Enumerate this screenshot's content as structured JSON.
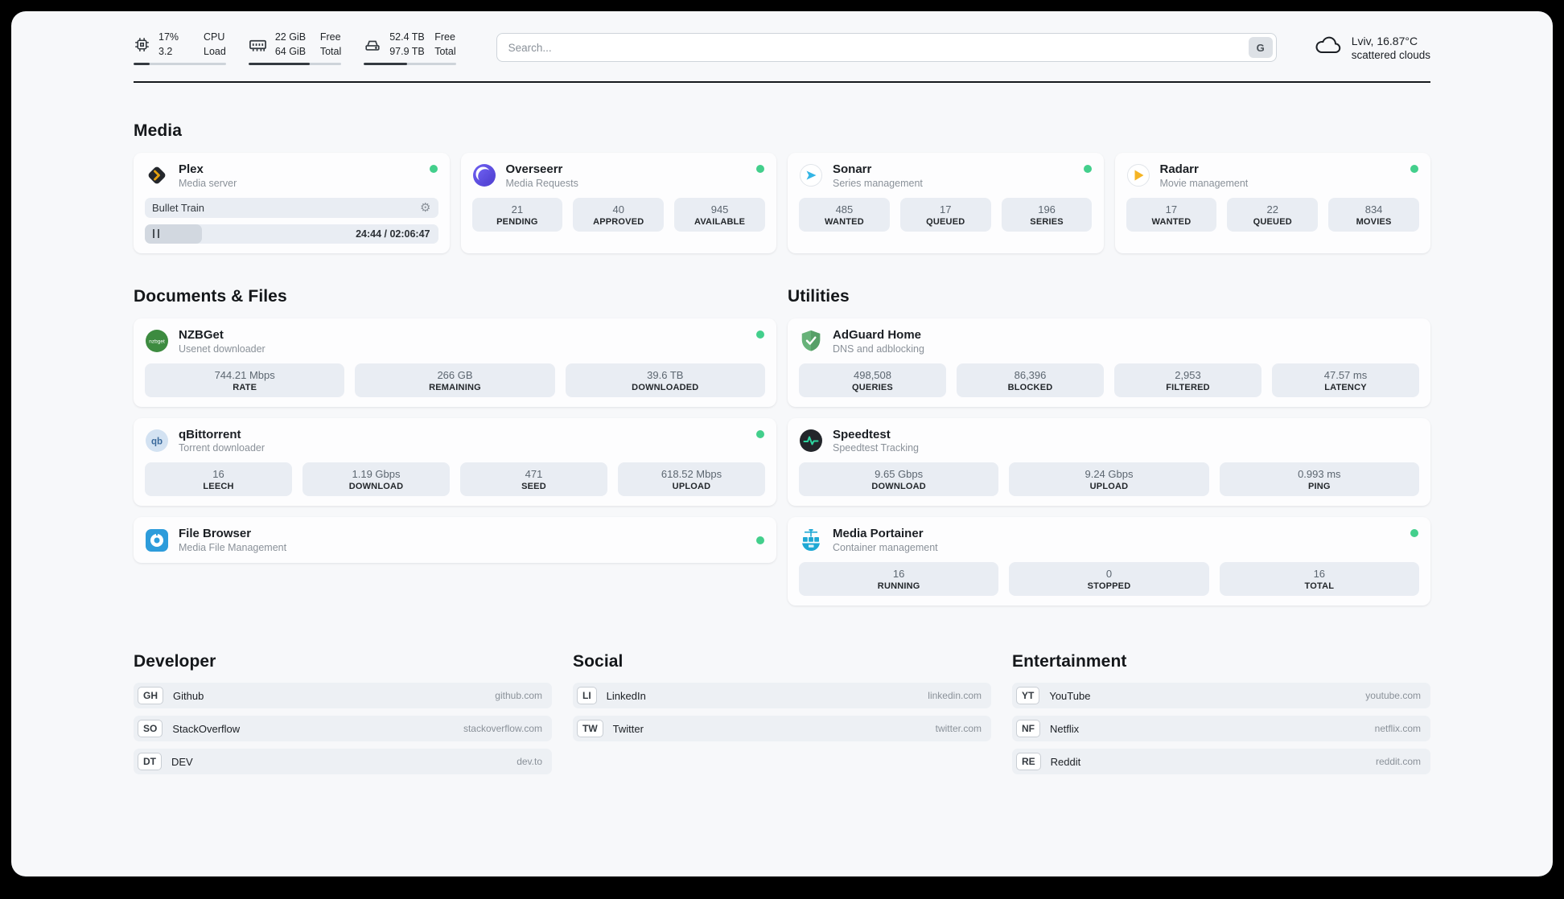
{
  "colors": {
    "status_online": "#43cf8c",
    "divider": "#16191d",
    "stat_box_bg": "#e9edf3",
    "plex_accent": "#e5a00d",
    "sonarr_accent": "#33b5e5",
    "radarr_accent": "#f5b423"
  },
  "header": {
    "cpu": {
      "value_top": "17%",
      "value_bottom": "3.2",
      "label_top": "CPU",
      "label_bottom": "Load",
      "bar_percent": 17
    },
    "ram": {
      "value_top": "22 GiB",
      "value_bottom": "64 GiB",
      "label_top": "Free",
      "label_bottom": "Total",
      "bar_percent": 66
    },
    "disk": {
      "value_top": "52.4 TB",
      "value_bottom": "97.9 TB",
      "label_top": "Free",
      "label_bottom": "Total",
      "bar_percent": 47
    },
    "search": {
      "placeholder": "Search...",
      "engine_label": "G"
    },
    "weather": {
      "location": "Lviv, 16.87°C",
      "condition": "scattered clouds"
    }
  },
  "sections": {
    "media": {
      "title": "Media"
    },
    "documents": {
      "title": "Documents & Files"
    },
    "utilities": {
      "title": "Utilities"
    },
    "developer": {
      "title": "Developer"
    },
    "social": {
      "title": "Social"
    },
    "entertainment": {
      "title": "Entertainment"
    }
  },
  "apps": {
    "plex": {
      "name": "Plex",
      "subtitle": "Media server",
      "now_playing": "Bullet Train",
      "time": "24:44 / 02:06:47",
      "progress_percent": 19.5
    },
    "overseerr": {
      "name": "Overseerr",
      "subtitle": "Media Requests",
      "stats": [
        {
          "value": "21",
          "label": "PENDING"
        },
        {
          "value": "40",
          "label": "APPROVED"
        },
        {
          "value": "945",
          "label": "AVAILABLE"
        }
      ]
    },
    "sonarr": {
      "name": "Sonarr",
      "subtitle": "Series management",
      "stats": [
        {
          "value": "485",
          "label": "WANTED"
        },
        {
          "value": "17",
          "label": "QUEUED"
        },
        {
          "value": "196",
          "label": "SERIES"
        }
      ]
    },
    "radarr": {
      "name": "Radarr",
      "subtitle": "Movie management",
      "stats": [
        {
          "value": "17",
          "label": "WANTED"
        },
        {
          "value": "22",
          "label": "QUEUED"
        },
        {
          "value": "834",
          "label": "MOVIES"
        }
      ]
    },
    "nzbget": {
      "name": "NZBGet",
      "subtitle": "Usenet downloader",
      "stats": [
        {
          "value": "744.21 Mbps",
          "label": "RATE"
        },
        {
          "value": "266 GB",
          "label": "REMAINING"
        },
        {
          "value": "39.6 TB",
          "label": "DOWNLOADED"
        }
      ]
    },
    "qbittorrent": {
      "name": "qBittorrent",
      "subtitle": "Torrent downloader",
      "stats": [
        {
          "value": "16",
          "label": "LEECH"
        },
        {
          "value": "1.19 Gbps",
          "label": "DOWNLOAD"
        },
        {
          "value": "471",
          "label": "SEED"
        },
        {
          "value": "618.52 Mbps",
          "label": "UPLOAD"
        }
      ]
    },
    "filebrowser": {
      "name": "File Browser",
      "subtitle": "Media File Management"
    },
    "adguard": {
      "name": "AdGuard Home",
      "subtitle": "DNS and adblocking",
      "stats": [
        {
          "value": "498,508",
          "label": "QUERIES"
        },
        {
          "value": "86,396",
          "label": "BLOCKED"
        },
        {
          "value": "2,953",
          "label": "FILTERED"
        },
        {
          "value": "47.57 ms",
          "label": "LATENCY"
        }
      ]
    },
    "speedtest": {
      "name": "Speedtest",
      "subtitle": "Speedtest Tracking",
      "stats": [
        {
          "value": "9.65 Gbps",
          "label": "DOWNLOAD"
        },
        {
          "value": "9.24 Gbps",
          "label": "UPLOAD"
        },
        {
          "value": "0.993 ms",
          "label": "PING"
        }
      ]
    },
    "portainer": {
      "name": "Media Portainer",
      "subtitle": "Container management",
      "stats": [
        {
          "value": "16",
          "label": "RUNNING"
        },
        {
          "value": "0",
          "label": "STOPPED"
        },
        {
          "value": "16",
          "label": "TOTAL"
        }
      ]
    }
  },
  "links": {
    "developer": [
      {
        "badge": "GH",
        "name": "Github",
        "domain": "github.com"
      },
      {
        "badge": "SO",
        "name": "StackOverflow",
        "domain": "stackoverflow.com"
      },
      {
        "badge": "DT",
        "name": "DEV",
        "domain": "dev.to"
      }
    ],
    "social": [
      {
        "badge": "LI",
        "name": "LinkedIn",
        "domain": "linkedin.com"
      },
      {
        "badge": "TW",
        "name": "Twitter",
        "domain": "twitter.com"
      }
    ],
    "entertainment": [
      {
        "badge": "YT",
        "name": "YouTube",
        "domain": "youtube.com"
      },
      {
        "badge": "NF",
        "name": "Netflix",
        "domain": "netflix.com"
      },
      {
        "badge": "RE",
        "name": "Reddit",
        "domain": "reddit.com"
      }
    ]
  }
}
